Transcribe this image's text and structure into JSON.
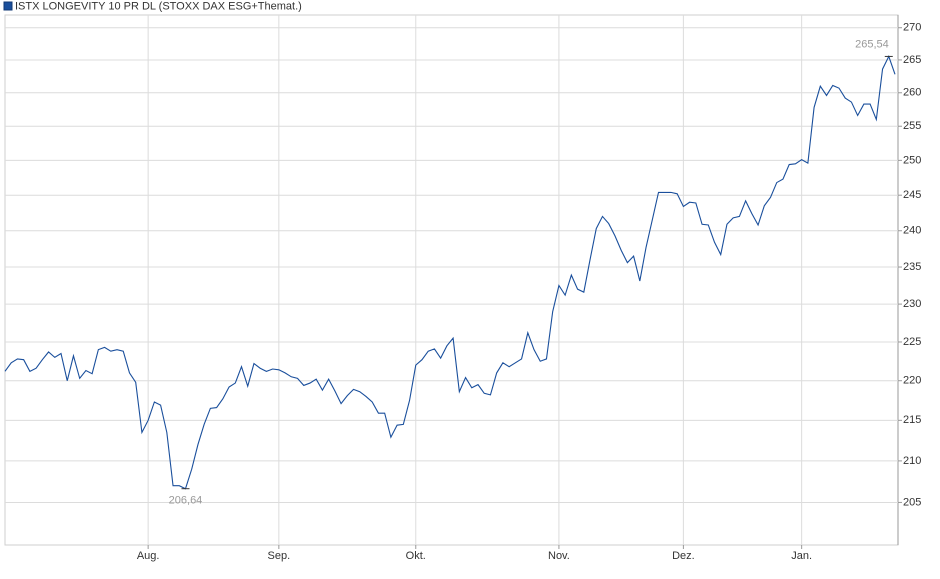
{
  "chart_data": {
    "type": "line",
    "log_scale": true,
    "grid": true,
    "legend": "top-left",
    "categories": [
      null,
      null,
      null,
      null,
      null,
      null,
      null,
      null,
      null,
      null,
      null,
      null,
      null,
      null,
      null,
      null,
      null,
      null,
      null,
      null,
      null,
      null,
      null,
      "Aug.",
      null,
      null,
      null,
      null,
      null,
      null,
      null,
      null,
      null,
      null,
      null,
      null,
      null,
      null,
      null,
      null,
      null,
      null,
      null,
      null,
      "Sep.",
      null,
      null,
      null,
      null,
      null,
      null,
      null,
      null,
      null,
      null,
      null,
      null,
      null,
      null,
      null,
      null,
      null,
      null,
      null,
      null,
      null,
      "Okt.",
      null,
      null,
      null,
      null,
      null,
      null,
      null,
      null,
      null,
      null,
      null,
      null,
      null,
      null,
      null,
      null,
      null,
      null,
      null,
      null,
      null,
      null,
      "Nov.",
      null,
      null,
      null,
      null,
      null,
      null,
      null,
      null,
      null,
      null,
      null,
      null,
      null,
      null,
      null,
      null,
      null,
      null,
      null,
      "Dez.",
      null,
      null,
      null,
      null,
      null,
      null,
      null,
      null,
      null,
      null,
      null,
      null,
      null,
      null,
      null,
      null,
      null,
      null,
      "Jan.",
      null,
      null,
      null,
      null,
      null,
      null,
      null,
      null,
      null,
      null,
      null,
      null,
      null,
      null,
      null
    ],
    "series": [
      {
        "name": "ISTX LONGEVITY 10 PR DL (STOXX DAX ESG+Themat.)",
        "color": "#1a4f9c",
        "values": [
          221.2,
          222.3,
          222.8,
          222.7,
          221.2,
          221.6,
          222.7,
          223.7,
          223.0,
          223.5,
          220.0,
          223.2,
          220.3,
          221.3,
          220.9,
          224.0,
          224.3,
          223.8,
          224.0,
          223.8,
          221.0,
          219.8,
          213.5,
          215.0,
          217.3,
          216.9,
          213.5,
          207.0,
          207.0,
          206.64,
          209.0,
          212.0,
          214.5,
          216.5,
          216.6,
          217.7,
          219.2,
          219.7,
          221.8,
          219.3,
          222.2,
          221.6,
          221.2,
          221.5,
          221.4,
          221.0,
          220.5,
          220.3,
          219.4,
          219.7,
          220.2,
          218.8,
          220.2,
          218.7,
          217.1,
          218.1,
          218.9,
          218.6,
          218.0,
          217.3,
          215.9,
          215.9,
          212.9,
          214.4,
          214.5,
          217.5,
          222.0,
          222.7,
          223.8,
          224.1,
          222.9,
          224.5,
          225.5,
          218.6,
          220.4,
          219.1,
          219.5,
          218.4,
          218.2,
          221.0,
          222.3,
          221.8,
          222.3,
          222.8,
          226.2,
          224.0,
          222.5,
          222.8,
          229.0,
          232.5,
          231.2,
          233.9,
          232.0,
          231.6,
          236.0,
          240.3,
          242.0,
          241.0,
          239.3,
          237.3,
          235.6,
          236.5,
          233.1,
          237.7,
          241.5,
          245.4,
          245.4,
          245.4,
          245.2,
          243.4,
          244.0,
          243.9,
          240.9,
          240.8,
          238.4,
          236.7,
          240.9,
          241.8,
          242.0,
          244.2,
          242.4,
          240.8,
          243.5,
          244.7,
          246.8,
          247.3,
          249.4,
          249.5,
          250.1,
          249.6,
          257.8,
          261.0,
          259.6,
          261.1,
          260.7,
          259.2,
          258.6,
          256.6,
          258.3,
          258.3,
          256.0,
          263.6,
          265.54,
          262.8
        ]
      }
    ],
    "annotations": [
      {
        "text": "206,64",
        "value": 206.64
      },
      {
        "text": "265,54",
        "value": 265.54
      }
    ],
    "ylim": [
      200,
      272
    ],
    "yticks": [
      205,
      210,
      215,
      220,
      225,
      230,
      235,
      240,
      245,
      250,
      255,
      260,
      265,
      270
    ]
  }
}
